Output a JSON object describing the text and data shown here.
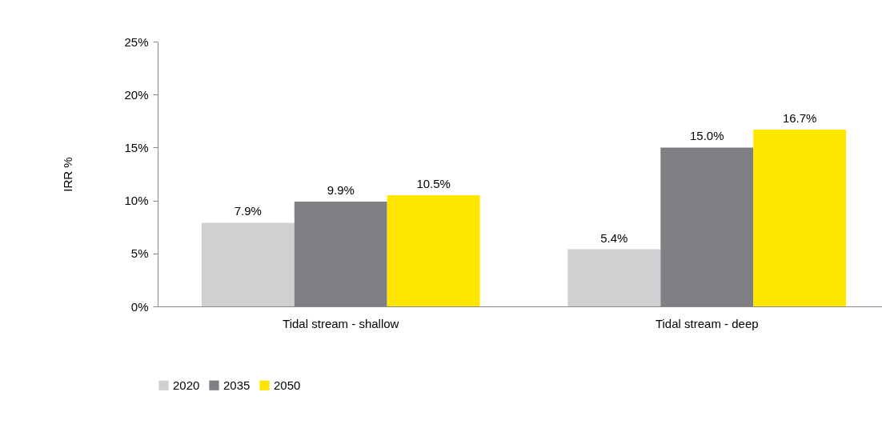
{
  "chart_data": {
    "type": "bar",
    "ylabel": "IRR %",
    "categories": [
      "Tidal stream - shallow",
      "Tidal stream - deep"
    ],
    "series": [
      {
        "name": "2020",
        "color": "#d0cfd1",
        "values": [
          7.9,
          5.4
        ],
        "value_labels": [
          "7.9%",
          "5.4%"
        ]
      },
      {
        "name": "2035",
        "color": "#807f83",
        "values": [
          9.9,
          15.0
        ],
        "value_labels": [
          "9.9%",
          "15.0%"
        ]
      },
      {
        "name": "2050",
        "color": "#ffe600",
        "values": [
          10.5,
          16.7
        ],
        "value_labels": [
          "10.5%",
          "16.7%"
        ]
      }
    ],
    "ylim": [
      0,
      25
    ],
    "yticks": [
      {
        "value": 0,
        "label": "0%"
      },
      {
        "value": 5,
        "label": "5%"
      },
      {
        "value": 10,
        "label": "10%"
      },
      {
        "value": 15,
        "label": "15%"
      },
      {
        "value": 20,
        "label": "20%"
      },
      {
        "value": 25,
        "label": "25%"
      }
    ],
    "grid": false,
    "legend": "bottom"
  }
}
